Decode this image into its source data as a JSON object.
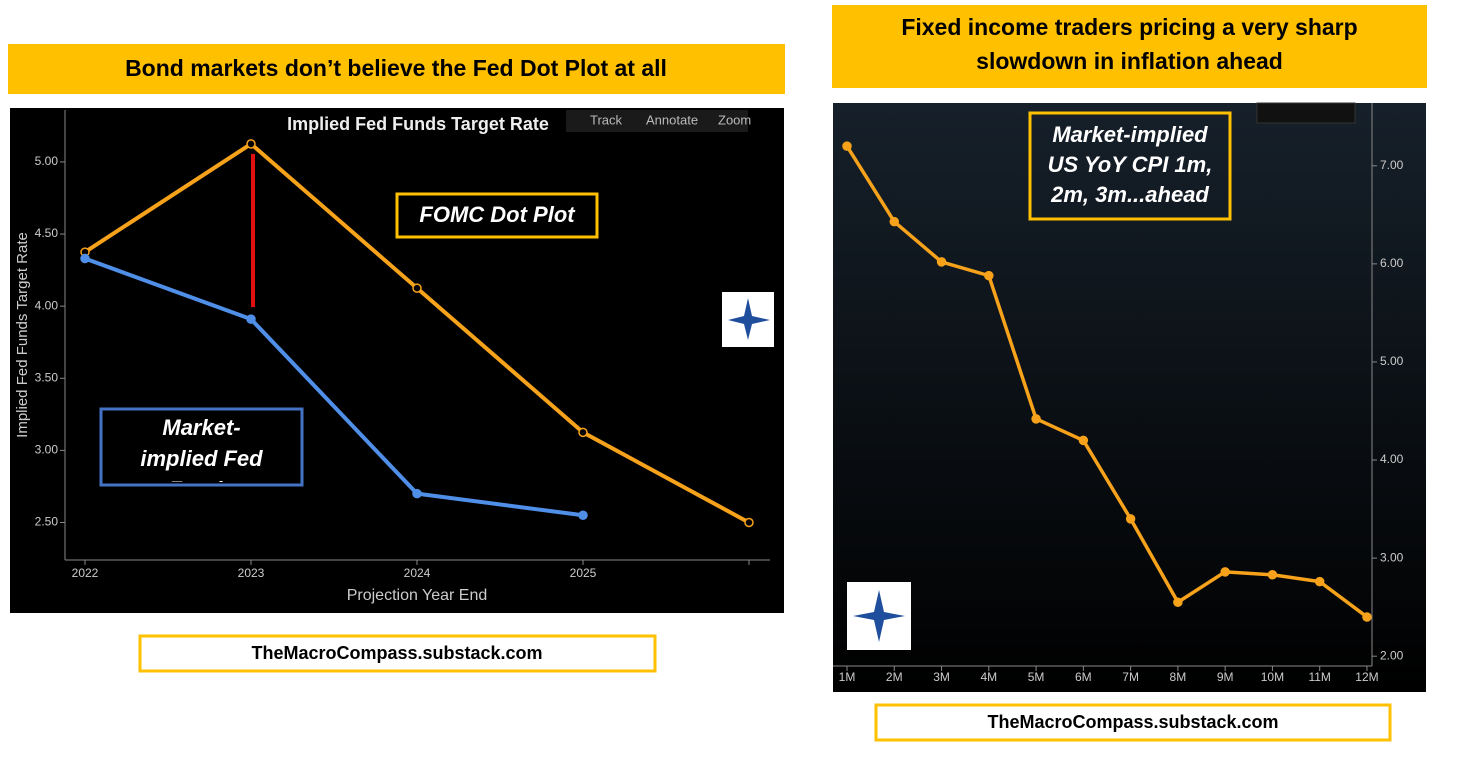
{
  "headers": [
    "Bond markets don’t believe the Fed Dot Plot at all",
    "Fixed income traders pricing a very sharp slowdown in inflation ahead"
  ],
  "footers": [
    "TheMacroCompass.substack.com",
    "TheMacroCompass.substack.com"
  ],
  "toolbar": [
    "Track",
    "Annotate",
    "Zoom"
  ],
  "chart_data": [
    {
      "type": "line",
      "title": "Implied Fed Funds Target Rate",
      "y_label": "Implied Fed Funds Target Rate",
      "x_label": "Projection Year End",
      "categories": [
        "2022",
        "2023",
        "2024",
        "2025",
        null
      ],
      "series": [
        {
          "name": "FOMC Dot Plot",
          "color": "#f7a21b",
          "values": [
            4.375,
            5.125,
            4.125,
            3.125,
            2.5
          ]
        },
        {
          "name": "Market-implied Fed Funds",
          "color": "#4f8fe8",
          "values": [
            4.33,
            3.91,
            2.7,
            2.55,
            null
          ]
        }
      ],
      "ylim": [
        2.24,
        5.36
      ],
      "yticks": [
        {
          "value": 2.5,
          "label": "2.50"
        },
        {
          "value": 3,
          "label": "3.00"
        },
        {
          "value": 3.5,
          "label": "3.50"
        },
        {
          "value": 4,
          "label": "4.00"
        },
        {
          "value": 4.5,
          "label": "4.50"
        },
        {
          "value": 5,
          "label": "5.00"
        }
      ]
    },
    {
      "type": "line",
      "annotation": [
        "Market-implied",
        "US YoY CPI 1m,",
        "2m, 3m...ahead"
      ],
      "categories": [
        "1M",
        "2M",
        "3M",
        "4M",
        "5M",
        "6M",
        "7M",
        "8M",
        "9M",
        "10M",
        "11M",
        "12M"
      ],
      "values": [
        7.2,
        6.43,
        6.02,
        5.88,
        4.42,
        4.2,
        3.4,
        2.55,
        2.86,
        2.83,
        2.76,
        2.4
      ],
      "color": "#f7a21b",
      "ylim": [
        1.9,
        7.64
      ],
      "yticks": [
        {
          "value": 2,
          "label": "2.00"
        },
        {
          "value": 3,
          "label": "3.00"
        },
        {
          "value": 4,
          "label": "4.00"
        },
        {
          "value": 5,
          "label": "5.00"
        },
        {
          "value": 6,
          "label": "6.00"
        },
        {
          "value": 7,
          "label": "7.00"
        }
      ]
    }
  ]
}
